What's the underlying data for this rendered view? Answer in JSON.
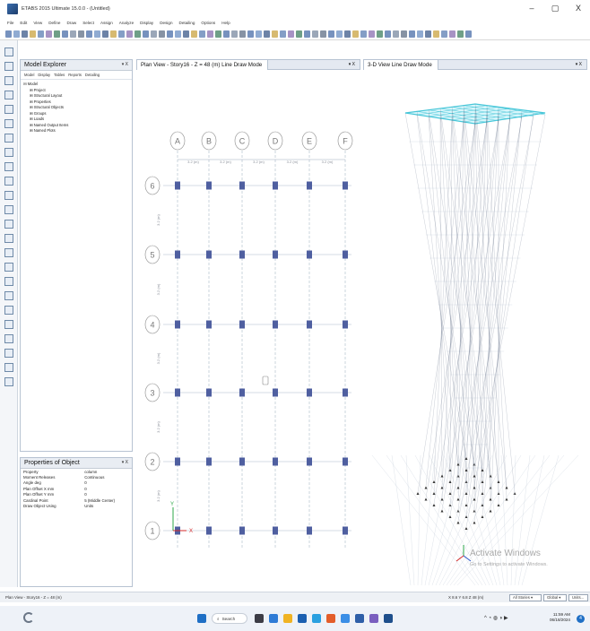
{
  "window": {
    "title": "ETABS 2015 Ultimate 15.0.0 - (Untitled)",
    "minimize": "–",
    "restore": "▢",
    "close": "X"
  },
  "menu": [
    "File",
    "Edit",
    "View",
    "Define",
    "Draw",
    "Select",
    "Assign",
    "Analyze",
    "Display",
    "Design",
    "Detailing",
    "Options",
    "Help"
  ],
  "model_explorer": {
    "title": "Model Explorer",
    "pin": "▾ X",
    "tabs": [
      "Model",
      "Display",
      "Tables",
      "Reports",
      "Detailing"
    ],
    "root": "Model",
    "children": [
      "Project",
      "Structural Layout",
      "Properties",
      "Structural Objects",
      "Groups",
      "Loads",
      "Named Output Items",
      "Named Plots"
    ]
  },
  "properties": {
    "title": "Properties of Object",
    "pin": "▾ X",
    "rows": [
      {
        "label": "Property",
        "value": "column"
      },
      {
        "label": "Moment Releases",
        "value": "Continuous"
      },
      {
        "label": "Angle deg",
        "value": "0"
      },
      {
        "label": "Plan Offset X mm",
        "value": "0"
      },
      {
        "label": "Plan Offset Y mm",
        "value": "0"
      },
      {
        "label": "Cardinal Point",
        "value": "5 (Middle Center)"
      },
      {
        "label": "Draw Object Using",
        "value": "Units"
      }
    ]
  },
  "plan_view": {
    "title": "Plan View - Story16 - Z = 48 (m)  Line Draw Mode",
    "pin": "▾ X",
    "x_grids": [
      "A",
      "B",
      "C",
      "D",
      "E",
      "F"
    ],
    "y_grids": [
      "6",
      "5",
      "4",
      "3",
      "2",
      "1"
    ],
    "x_spacing_label": "3.2 (m)",
    "y_spacing_label": "3.2 (m)",
    "axis_x": "X",
    "axis_y": "Y"
  },
  "view_3d": {
    "title": "3-D View  Line Draw Mode",
    "pin": "▾ X"
  },
  "status": {
    "left": "Plan View - Story16 - Z = 48 (m)",
    "coords": "X 8.6  Y 6.8  Z 48 (m)",
    "stories": "All Stories",
    "coord_system": "Global",
    "units": "Units..."
  },
  "watermark": {
    "title": "Activate Windows",
    "subtitle": "Go to Settings to activate Windows."
  },
  "taskbar": {
    "search": "Search",
    "time": "11:59 AM",
    "date": "06/18/2024",
    "notifications": "4"
  },
  "colors": {
    "grid_line": "#a9b8c9",
    "column": "#4f5fa0",
    "bubble": "#8a8a8a",
    "wire_3d": "#3b4a68",
    "roof_3d": "#49c7d9"
  }
}
